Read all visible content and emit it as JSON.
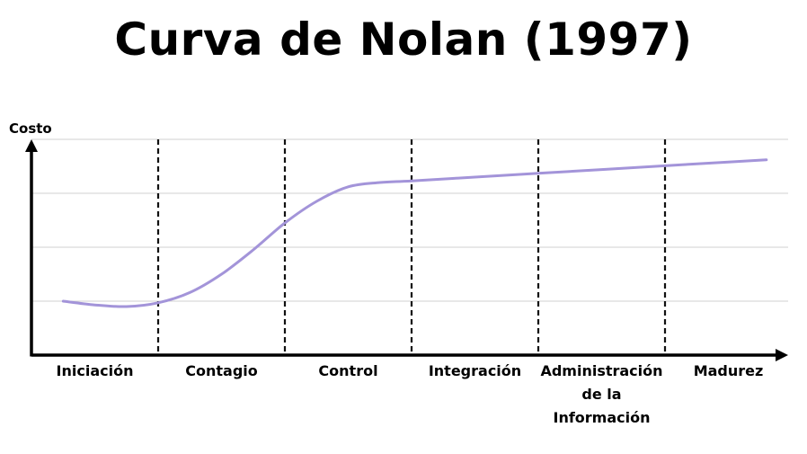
{
  "title": "Curva de Nolan (1997)",
  "chart_data": {
    "type": "line",
    "title": "Curva de Nolan (1997)",
    "ylabel": "Costo",
    "xlabel": "",
    "ylim": [
      0,
      4
    ],
    "grid": true,
    "legend": "none",
    "stages": [
      [
        "Iniciación"
      ],
      [
        "Contagio"
      ],
      [
        "Control"
      ],
      [
        "Integración"
      ],
      [
        "Administración",
        "de la",
        "Información"
      ],
      [
        "Madurez"
      ]
    ],
    "series": [
      {
        "color": "#a394d9",
        "x": [
          0.25,
          0.5,
          0.75,
          1.0,
          1.25,
          1.5,
          1.75,
          2.0,
          2.25,
          2.5,
          2.75,
          3.0,
          3.5,
          4.0,
          4.5,
          5.0,
          5.5,
          5.8
        ],
        "y": [
          1.0,
          0.93,
          0.9,
          0.97,
          1.16,
          1.5,
          1.95,
          2.45,
          2.85,
          3.12,
          3.2,
          3.23,
          3.3,
          3.37,
          3.44,
          3.51,
          3.58,
          3.62
        ]
      }
    ],
    "boundaries": [
      1,
      2,
      3,
      4,
      5
    ]
  }
}
